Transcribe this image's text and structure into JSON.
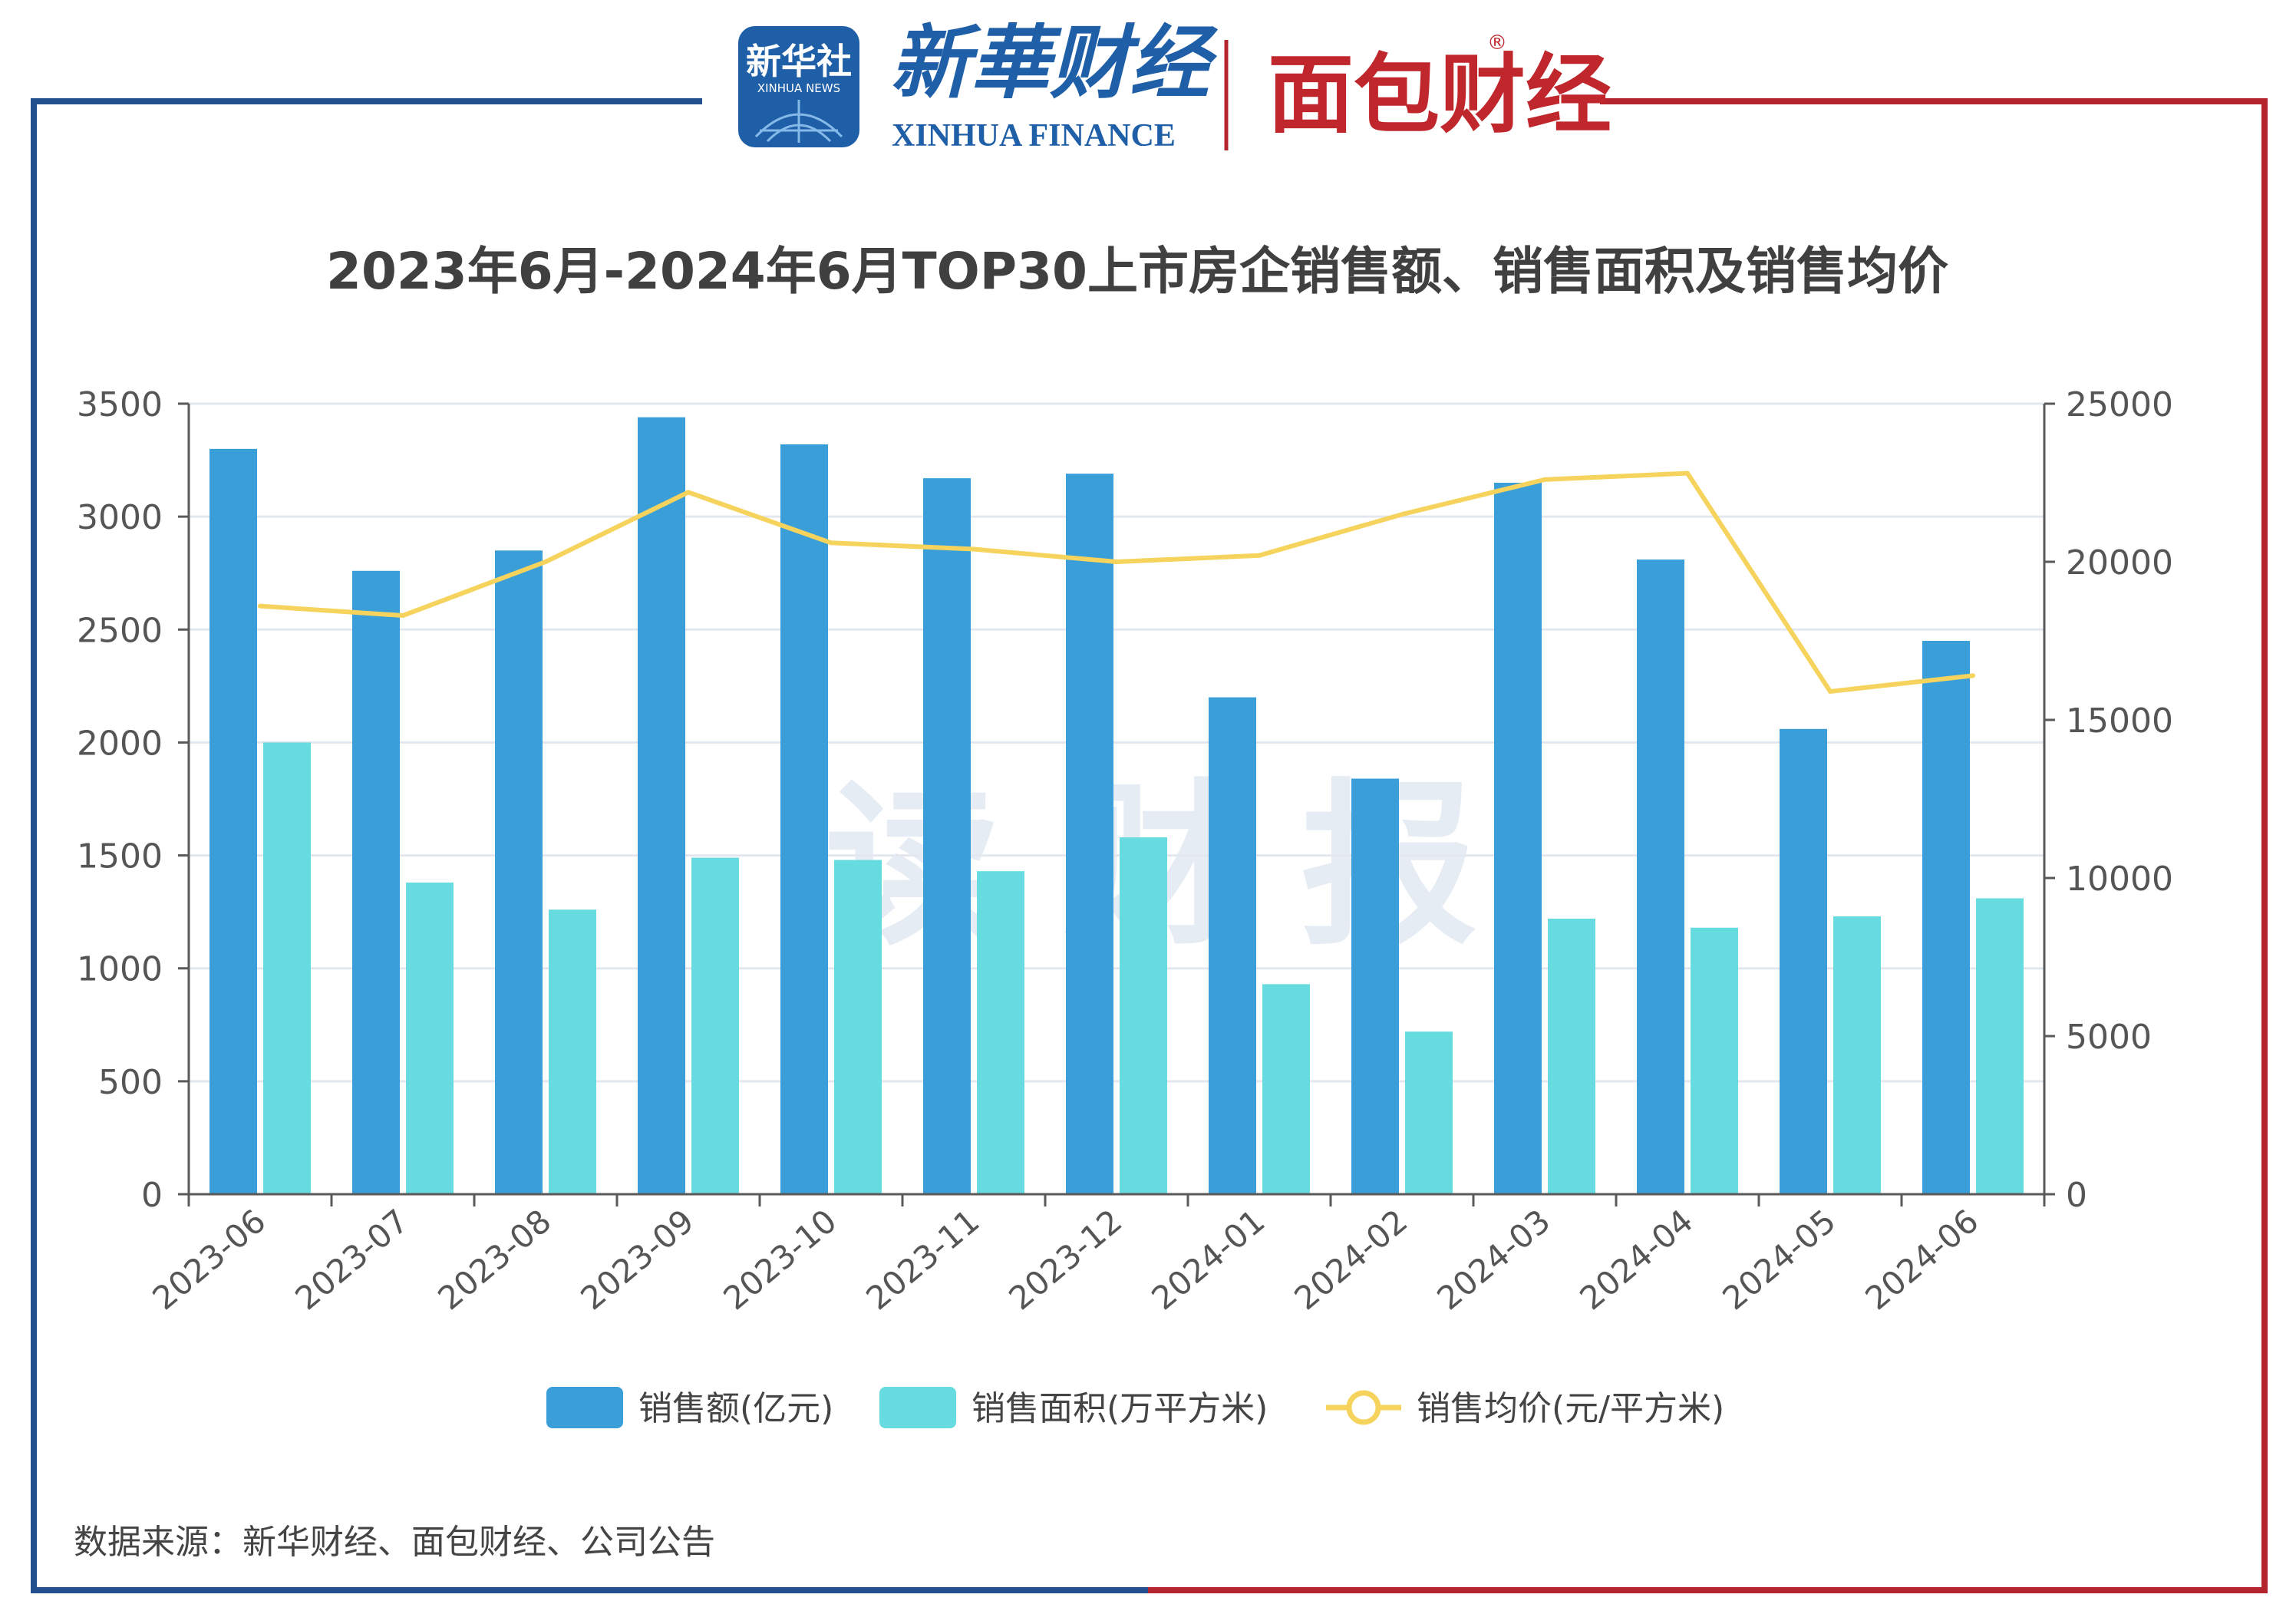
{
  "header": {
    "xinhua_badge": "新华社",
    "xinhua_badge_sub": "XINHUA NEWS",
    "xinhua_finance_cn": "新華财经",
    "xinhua_finance_en": "XINHUA FINANCE",
    "mianbao": "面包财经",
    "registered": "®"
  },
  "watermark": "读 财 报",
  "source_note": "数据来源：新华财经、面包财经、公司公告",
  "colors": {
    "amount": "#3a9fd9",
    "area": "#66dbe0",
    "price": "#f5d35c",
    "frame_blue": "#22508f",
    "frame_red": "#b3242e",
    "grid": "#e3e7ef",
    "axis": "#5a5a5a",
    "title": "#404040",
    "mianbao_red": "#c0272d"
  },
  "chart_data": {
    "type": "bar",
    "title": "2023年6月-2024年6月TOP30上市房企销售额、销售面积及销售均价",
    "categories": [
      "2023-06",
      "2023-07",
      "2023-08",
      "2023-09",
      "2023-10",
      "2023-11",
      "2023-12",
      "2024-01",
      "2024-02",
      "2024-03",
      "2024-04",
      "2024-05",
      "2024-06"
    ],
    "series": [
      {
        "name": "销售额(亿元)",
        "type": "bar",
        "axis": "left",
        "values": [
          3300,
          2760,
          2850,
          3440,
          3320,
          3170,
          3190,
          2200,
          1840,
          3150,
          2810,
          2060,
          2450
        ]
      },
      {
        "name": "销售面积(万平方米)",
        "type": "bar",
        "axis": "left",
        "values": [
          2000,
          1380,
          1260,
          1490,
          1480,
          1430,
          1580,
          930,
          720,
          1220,
          1180,
          1230,
          1310
        ]
      },
      {
        "name": "销售均价(元/平方米)",
        "type": "line",
        "axis": "right",
        "values": [
          18600,
          18300,
          20000,
          22200,
          20600,
          20400,
          20000,
          20200,
          21500,
          22600,
          22800,
          15900,
          16400
        ]
      }
    ],
    "ylim": [
      0,
      3500
    ],
    "yticks": [
      0,
      500,
      1000,
      1500,
      2000,
      2500,
      3000,
      3500
    ],
    "y2lim": [
      0,
      25000
    ],
    "y2ticks": [
      0,
      5000,
      10000,
      15000,
      20000,
      25000
    ],
    "grid": true,
    "legend": "bottom-center"
  }
}
